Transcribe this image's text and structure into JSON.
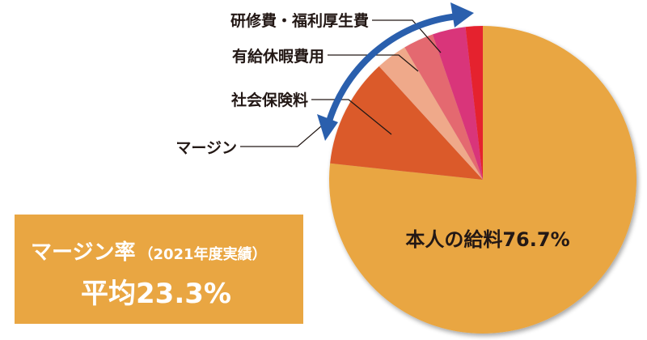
{
  "chart_data": {
    "type": "pie",
    "categories": [
      "本人の給料",
      "マージン",
      "社会保険料",
      "有給休暇費用",
      "研修費・福利厚生費"
    ],
    "slices": [
      {
        "label": "本人の給料",
        "value": 76.7,
        "color": "#e9a642"
      },
      {
        "label": "社会保険料",
        "value": 11.5,
        "color": "#db5a2c"
      },
      {
        "label": "有給休暇費用",
        "value": 3.3,
        "color": "#efa98a"
      },
      {
        "label": "研修費・福利厚生費",
        "value": 3.2,
        "color": "#e46970"
      },
      {
        "label": "",
        "value": 3.5,
        "color": "#d9357a"
      },
      {
        "label": "",
        "value": 1.8,
        "color": "#e5242f"
      }
    ],
    "slice_label_text": "本人の給料76.7%",
    "callouts": [
      "研修費・福利厚生費",
      "有給休暇費用",
      "社会保険料",
      "マージン"
    ],
    "arrow_color": "#2a5fad"
  },
  "info_box": {
    "title": "マージン率",
    "note": "（2021年度実績）",
    "value": "平均23.3%",
    "color": "#e9a642"
  }
}
